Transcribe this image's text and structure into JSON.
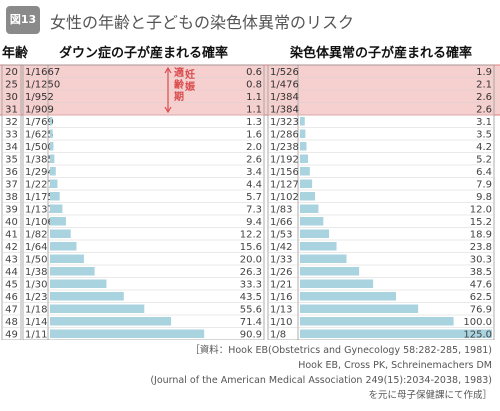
{
  "figure_label": "図13",
  "title": "女性の年齢と子どもの染色体異常のリスク",
  "chart_data": {
    "type": "bar",
    "columns": [
      "年齢",
      "ダウン症の子が産まれる確率",
      "染色体異常の子が産まれる確率"
    ],
    "band_label": "適齢期",
    "band_label_2": "妊娠",
    "ages": [
      20,
      25,
      30,
      31,
      32,
      33,
      34,
      35,
      36,
      37,
      38,
      39,
      40,
      41,
      42,
      43,
      44,
      45,
      46,
      47,
      48,
      49
    ],
    "series": [
      {
        "name": "ダウン症の子が産まれる確率",
        "ratios": [
          "1/1667",
          "1/1250",
          "1/952",
          "1/909",
          "1/769",
          "1/625",
          "1/500",
          "1/385",
          "1/294",
          "1/227",
          "1/175",
          "1/137",
          "1/106",
          "1/82",
          "1/64",
          "1/50",
          "1/38",
          "1/30",
          "1/23",
          "1/18",
          "1/14",
          "1/11"
        ],
        "values": [
          0.6,
          0.8,
          1.1,
          1.1,
          1.3,
          1.6,
          2.0,
          2.6,
          3.4,
          4.4,
          5.7,
          7.3,
          9.4,
          12.2,
          15.6,
          20.0,
          26.3,
          33.3,
          43.5,
          55.6,
          71.4,
          90.9
        ]
      },
      {
        "name": "染色体異常の子が産まれる確率",
        "ratios": [
          "1/526",
          "1/476",
          "1/384",
          "1/384",
          "1/323",
          "1/286",
          "1/238",
          "1/192",
          "1/156",
          "1/127",
          "1/102",
          "1/83",
          "1/66",
          "1/53",
          "1/42",
          "1/33",
          "1/26",
          "1/21",
          "1/16",
          "1/13",
          "1/10",
          "1/8"
        ],
        "values": [
          1.9,
          2.1,
          2.6,
          2.6,
          3.1,
          3.5,
          4.2,
          5.2,
          6.4,
          7.9,
          9.8,
          12.0,
          15.2,
          18.9,
          23.8,
          30.3,
          38.5,
          47.6,
          62.5,
          76.9,
          100.0,
          125.0
        ]
      }
    ],
    "value_labels_left": [
      "0.6",
      "0.8",
      "1.1",
      "1.1",
      "1.3",
      "1.6",
      "2.0",
      "2.6",
      "3.4",
      "4.4",
      "5.7",
      "7.3",
      "9.4",
      "12.2",
      "15.6",
      "20.0",
      "26.3",
      "33.3",
      "43.5",
      "55.6",
      "71.4",
      "90.9"
    ],
    "value_labels_right": [
      "1.9",
      "2.1",
      "2.6",
      "2.6",
      "3.1",
      "3.5",
      "4.2",
      "5.2",
      "6.4",
      "7.9",
      "9.8",
      "12.0",
      "15.2",
      "18.9",
      "23.8",
      "30.3",
      "38.5",
      "47.6",
      "62.5",
      "76.9",
      "100.0",
      "125.0"
    ],
    "highlight_ages": [
      20,
      25,
      30,
      31
    ],
    "xlim": [
      0,
      125
    ]
  },
  "references": [
    "［資料：Hook EB(Obstetrics and Gynecology 58:282-285, 1981)",
    "Hook EB, Cross PK, Schreinemachers DM",
    "(Journal of the American Medical Association 249(15):2034-2038, 1983)",
    "を元に母子保健課にて作成］"
  ],
  "colors": {
    "bar": "#a9d3df",
    "highlight_bg": "#f6cfcf",
    "highlight_border": "#e07d7d",
    "band_text": "#d94c4c",
    "text": "#333333"
  }
}
